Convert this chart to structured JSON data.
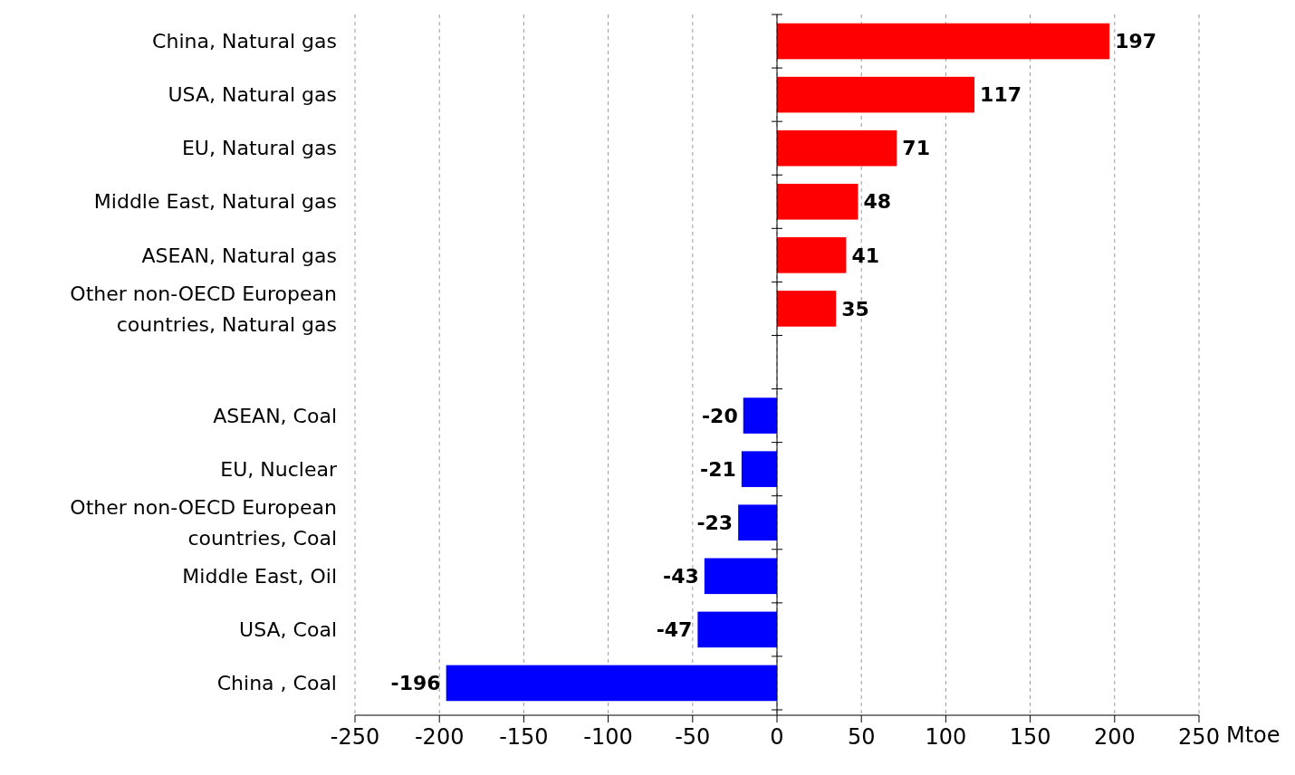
{
  "chart_data": {
    "type": "bar",
    "orientation": "horizontal",
    "xlabel": "Mtoe",
    "categories": [
      "China, Natural gas",
      "USA, Natural gas",
      "EU, Natural gas",
      "Middle East, Natural gas",
      "ASEAN, Natural gas",
      "Other non-OECD European countries, Natural gas",
      null,
      "ASEAN, Coal",
      "EU, Nuclear",
      "Other non-OECD European countries, Coal",
      "Middle East, Oil",
      "USA, Coal",
      "China , Coal"
    ],
    "values": [
      197,
      117,
      71,
      48,
      41,
      35,
      null,
      -20,
      -21,
      -23,
      -43,
      -47,
      -196
    ],
    "colors": [
      "#ff0000",
      "#ff0000",
      "#ff0000",
      "#ff0000",
      "#ff0000",
      "#ff0000",
      null,
      "#0000ff",
      "#0000ff",
      "#0000ff",
      "#0000ff",
      "#0000ff",
      "#0000ff"
    ],
    "xlim": [
      -250,
      250
    ],
    "xticks": [
      -250,
      -200,
      -150,
      -100,
      -50,
      0,
      50,
      100,
      150,
      200,
      250
    ],
    "grid": "x",
    "data_labels": true
  }
}
